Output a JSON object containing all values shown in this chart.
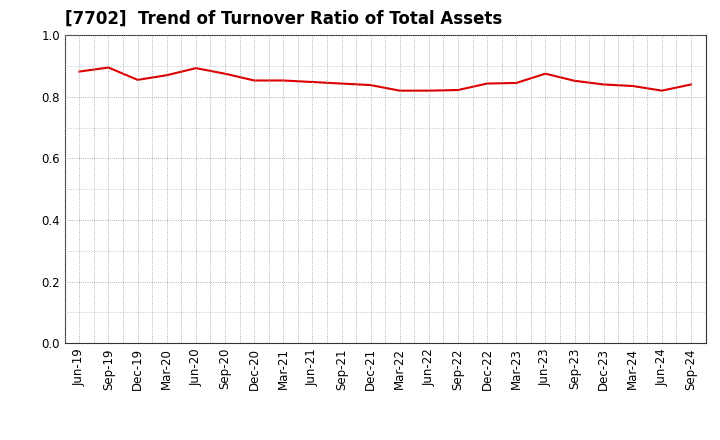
{
  "title": "[7702]  Trend of Turnover Ratio of Total Assets",
  "x_labels": [
    "Jun-19",
    "Sep-19",
    "Dec-19",
    "Mar-20",
    "Jun-20",
    "Sep-20",
    "Dec-20",
    "Mar-21",
    "Jun-21",
    "Sep-21",
    "Dec-21",
    "Mar-22",
    "Jun-22",
    "Sep-22",
    "Dec-22",
    "Mar-23",
    "Jun-23",
    "Sep-23",
    "Dec-23",
    "Mar-24",
    "Jun-24",
    "Sep-24"
  ],
  "y_values": [
    0.882,
    0.895,
    0.855,
    0.87,
    0.893,
    0.875,
    0.853,
    0.853,
    0.848,
    0.843,
    0.838,
    0.82,
    0.82,
    0.822,
    0.843,
    0.845,
    0.875,
    0.852,
    0.84,
    0.835,
    0.82,
    0.84
  ],
  "line_color": "#dd0000",
  "line_width": 1.5,
  "ylim": [
    0.0,
    1.0
  ],
  "yticks": [
    0.0,
    0.2,
    0.4,
    0.6,
    0.8,
    1.0
  ],
  "background_color": "#ffffff",
  "grid_color": "#999999",
  "title_fontsize": 12,
  "tick_fontsize": 8.5
}
